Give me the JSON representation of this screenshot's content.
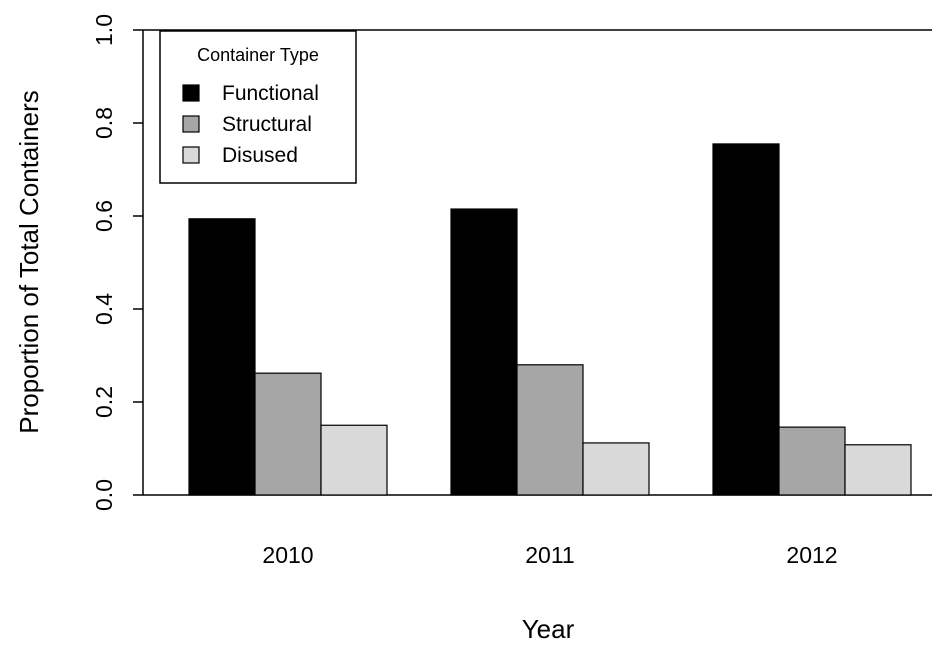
{
  "chart_data": {
    "type": "bar",
    "title": "",
    "xlabel": "Year",
    "ylabel": "Proportion of Total Containers",
    "categories": [
      "2010",
      "2011",
      "2012"
    ],
    "ylim": [
      0,
      1
    ],
    "yticks": [
      "0.0",
      "0.2",
      "0.4",
      "0.6",
      "0.8",
      "1.0"
    ],
    "grid": false,
    "legend": {
      "title": "Container Type",
      "position": "top-left"
    },
    "series": [
      {
        "name": "Functional",
        "color": "#000000",
        "values": [
          0.594,
          0.615,
          0.755
        ]
      },
      {
        "name": "Structural",
        "color": "#a6a6a6",
        "values": [
          0.262,
          0.28,
          0.146
        ]
      },
      {
        "name": "Disused",
        "color": "#d9d9d9",
        "values": [
          0.15,
          0.112,
          0.108
        ]
      }
    ]
  }
}
